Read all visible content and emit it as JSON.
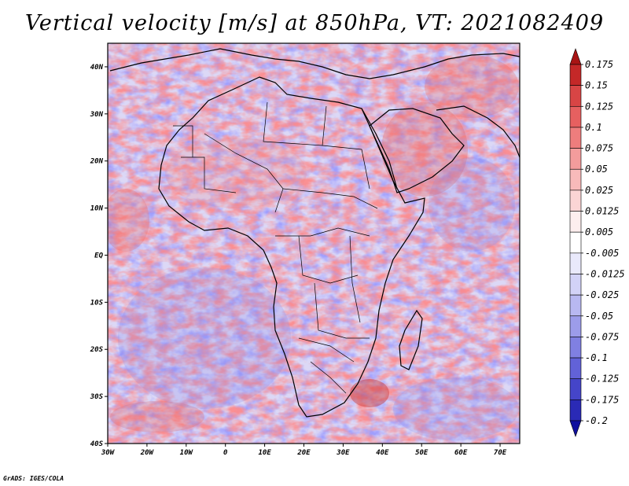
{
  "title": "Vertical velocity [m/s] at 850hPa, VT: 2021082409",
  "footer": "GrADS: IGES/COLA",
  "map": {
    "lat_labels": [
      "40N",
      "30N",
      "20N",
      "10N",
      "EQ",
      "10S",
      "20S",
      "30S",
      "40S"
    ],
    "lat_values": [
      40,
      30,
      20,
      10,
      0,
      -10,
      -20,
      -30,
      -40
    ],
    "lon_labels": [
      "30W",
      "20W",
      "10W",
      "0",
      "10E",
      "20E",
      "30E",
      "40E",
      "50E",
      "60E",
      "70E"
    ],
    "lon_values": [
      -30,
      -20,
      -10,
      0,
      10,
      20,
      30,
      40,
      50,
      60,
      70
    ],
    "lon_range": [
      -30,
      75
    ],
    "lat_range": [
      -40,
      45
    ]
  },
  "colorbar": {
    "labels": [
      "0.175",
      "0.15",
      "0.125",
      "0.1",
      "0.075",
      "0.05",
      "0.025",
      "0.0125",
      "0.005",
      "-0.005",
      "-0.0125",
      "-0.025",
      "-0.05",
      "-0.075",
      "-0.1",
      "-0.125",
      "-0.175",
      "-0.2"
    ],
    "colors": [
      "#a81414",
      "#c42828",
      "#d84545",
      "#e66060",
      "#ee7d7d",
      "#f39c9c",
      "#f8baba",
      "#fbd5d5",
      "#fdeeee",
      "#ffffff",
      "#e9e9fb",
      "#d2d2f7",
      "#b8b8f1",
      "#9c9cea",
      "#8080e2",
      "#6262d8",
      "#4545c9",
      "#2a2ab6",
      "#10109e"
    ]
  }
}
